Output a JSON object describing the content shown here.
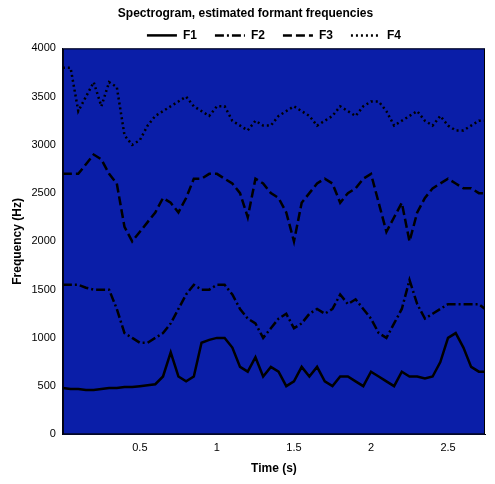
{
  "chart_data": {
    "type": "line",
    "title": "Spectrogram, estimated formant frequencies",
    "x_label": "Time (s)",
    "y_label": "Frequency (Hz)",
    "x": [
      0,
      0.05,
      0.1,
      0.15,
      0.2,
      0.25,
      0.3,
      0.35,
      0.4,
      0.45,
      0.5,
      0.55,
      0.6,
      0.65,
      0.7,
      0.75,
      0.8,
      0.85,
      0.9,
      0.95,
      1.0,
      1.05,
      1.1,
      1.15,
      1.2,
      1.25,
      1.3,
      1.35,
      1.4,
      1.45,
      1.5,
      1.55,
      1.6,
      1.65,
      1.7,
      1.75,
      1.8,
      1.85,
      1.9,
      1.95,
      2.0,
      2.05,
      2.1,
      2.15,
      2.2,
      2.25,
      2.3,
      2.35,
      2.4,
      2.45,
      2.5,
      2.55,
      2.6,
      2.65,
      2.7,
      2.74
    ],
    "series": [
      {
        "name": "F1",
        "color": "#000000",
        "line_style": "solid",
        "values": [
          480,
          470,
          470,
          460,
          460,
          470,
          480,
          480,
          490,
          490,
          500,
          510,
          520,
          600,
          850,
          600,
          550,
          600,
          950,
          980,
          1000,
          1000,
          900,
          700,
          650,
          800,
          600,
          700,
          650,
          500,
          550,
          700,
          600,
          700,
          550,
          500,
          600,
          600,
          550,
          500,
          650,
          600,
          550,
          500,
          650,
          600,
          600,
          580,
          600,
          750,
          1000,
          1050,
          900,
          700,
          650,
          650
        ]
      },
      {
        "name": "F2",
        "color": "#000000",
        "line_style": "dashdot",
        "values": [
          1550,
          1550,
          1550,
          1520,
          1500,
          1500,
          1500,
          1300,
          1050,
          1000,
          950,
          950,
          1000,
          1050,
          1150,
          1300,
          1450,
          1550,
          1500,
          1500,
          1550,
          1550,
          1450,
          1300,
          1200,
          1150,
          1000,
          1100,
          1200,
          1250,
          1100,
          1150,
          1250,
          1300,
          1250,
          1300,
          1450,
          1350,
          1400,
          1300,
          1200,
          1050,
          1000,
          1150,
          1300,
          1600,
          1350,
          1200,
          1250,
          1300,
          1350,
          1350,
          1350,
          1350,
          1350,
          1300
        ]
      },
      {
        "name": "F3",
        "color": "#000000",
        "line_style": "dashed",
        "values": [
          2700,
          2700,
          2700,
          2800,
          2900,
          2850,
          2700,
          2600,
          2150,
          2000,
          2100,
          2200,
          2300,
          2450,
          2400,
          2300,
          2450,
          2650,
          2650,
          2700,
          2700,
          2650,
          2600,
          2500,
          2250,
          2650,
          2600,
          2500,
          2450,
          2300,
          2000,
          2400,
          2500,
          2600,
          2650,
          2600,
          2400,
          2500,
          2550,
          2650,
          2700,
          2400,
          2100,
          2250,
          2400,
          2000,
          2300,
          2450,
          2550,
          2600,
          2650,
          2600,
          2550,
          2550,
          2500,
          2500
        ]
      },
      {
        "name": "F4",
        "color": "#000000",
        "line_style": "dotted",
        "values": [
          3800,
          3800,
          3350,
          3500,
          3650,
          3400,
          3650,
          3600,
          3100,
          3000,
          3050,
          3200,
          3300,
          3350,
          3400,
          3450,
          3500,
          3400,
          3350,
          3300,
          3400,
          3400,
          3250,
          3200,
          3150,
          3250,
          3200,
          3200,
          3300,
          3350,
          3400,
          3350,
          3300,
          3200,
          3250,
          3300,
          3400,
          3350,
          3300,
          3400,
          3450,
          3450,
          3350,
          3200,
          3250,
          3300,
          3350,
          3250,
          3200,
          3300,
          3200,
          3150,
          3150,
          3200,
          3250,
          3250
        ]
      }
    ],
    "xlim": [
      0,
      2.74
    ],
    "xticks": [
      0.5,
      1,
      1.5,
      2,
      2.5
    ],
    "ylim": [
      0,
      4000
    ],
    "yticks": [
      0,
      500,
      1000,
      1500,
      2000,
      2500,
      3000,
      3500,
      4000
    ],
    "grid": false,
    "legend": "top"
  }
}
